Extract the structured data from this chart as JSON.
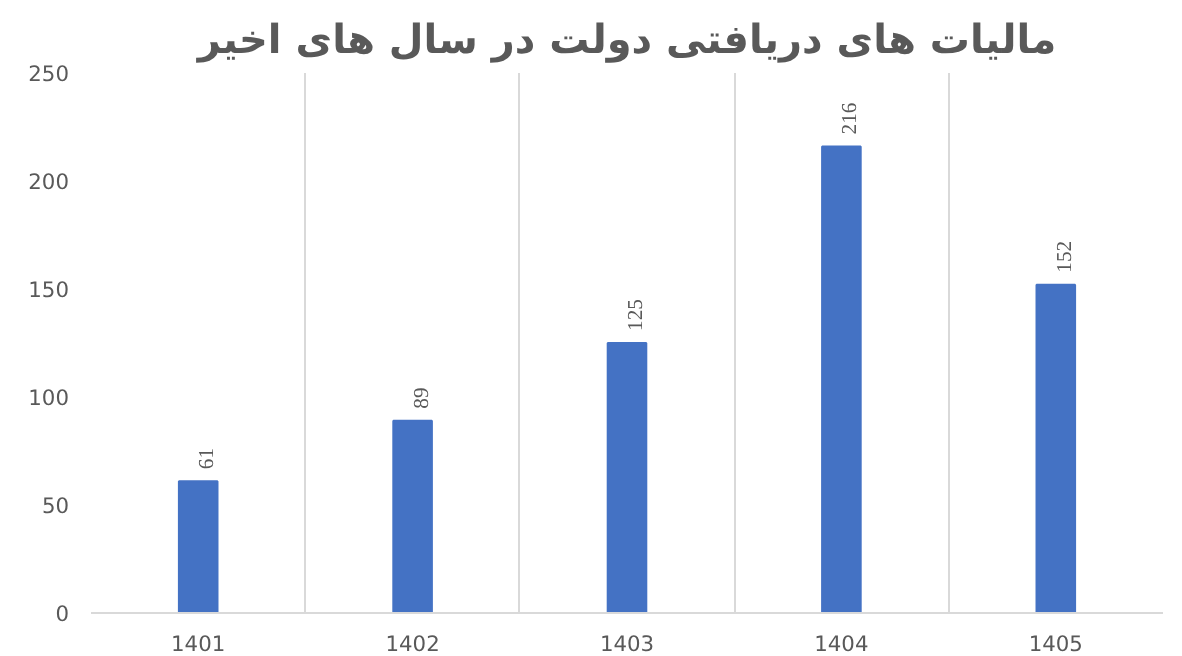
{
  "chart_data": {
    "type": "bar",
    "title": "مالیات های دریافتی دولت در سال های اخیر",
    "categories": [
      "1401",
      "1402",
      "1403",
      "1404",
      "1405"
    ],
    "values": [
      61,
      89,
      125,
      216,
      152
    ],
    "color": "#4472c4",
    "ylim": [
      0,
      250
    ],
    "yticks": [
      0,
      50,
      100,
      150,
      200,
      250
    ],
    "grid": "x",
    "data_labels": true
  }
}
